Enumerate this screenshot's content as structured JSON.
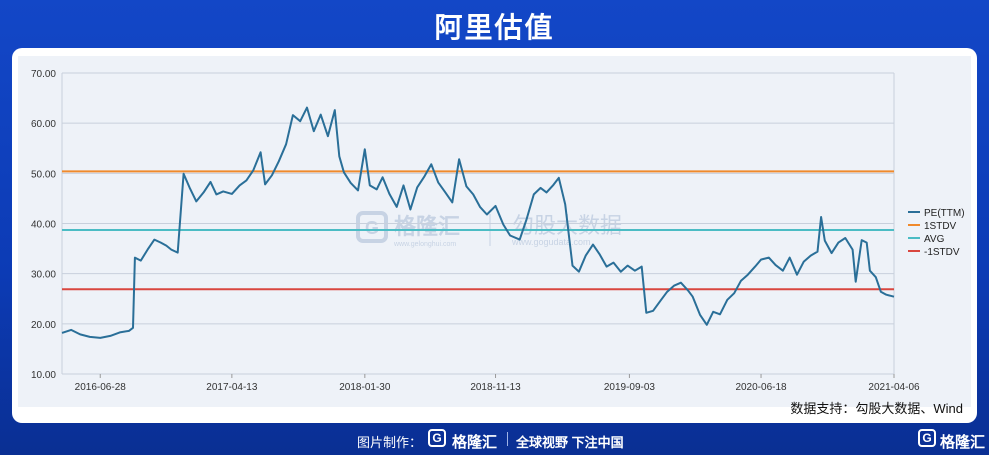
{
  "title": "阿里估值",
  "source": "数据支持：勾股大数据、Wind",
  "footer": {
    "made_by": "图片制作：",
    "brand": "格隆汇",
    "slogan": "全球视野 下注中国",
    "brand_right": "格隆汇",
    "logo_letter": "G"
  },
  "watermark": {
    "brand": "格隆汇",
    "brand_url": "www.gelonghui.com",
    "data": "勾股大数据",
    "data_url": "www.gogudata.com"
  },
  "colors": {
    "pe": "#2a6f98",
    "stdv_plus": "#f08a2c",
    "avg": "#4bbcc4",
    "stdv_minus": "#d9463f",
    "grid": "#c8d0dc"
  },
  "chart_data": {
    "type": "line",
    "ylim": [
      10,
      70
    ],
    "yticks": [
      "10.00",
      "20.00",
      "30.00",
      "40.00",
      "50.00",
      "60.00",
      "70.00"
    ],
    "xlim": [
      "2016-04-05",
      "2021-04-06"
    ],
    "xticks": [
      "2016-06-28",
      "2017-04-13",
      "2018-01-30",
      "2018-11-13",
      "2019-09-03",
      "2020-06-18",
      "2021-04-06"
    ],
    "hlines": [
      {
        "name": "1STDV",
        "value": 50.4
      },
      {
        "name": "AVG",
        "value": 38.7
      },
      {
        "name": "-1STDV",
        "value": 26.9
      }
    ],
    "legend": [
      "PE(TTM)",
      "1STDV",
      "AVG",
      "-1STDV"
    ],
    "legend_position": "right",
    "series": [
      {
        "name": "PE(TTM)",
        "points": [
          [
            "2016-04-05",
            18.2
          ],
          [
            "2016-04-25",
            18.8
          ],
          [
            "2016-05-15",
            17.9
          ],
          [
            "2016-06-05",
            17.4
          ],
          [
            "2016-06-28",
            17.2
          ],
          [
            "2016-07-20",
            17.6
          ],
          [
            "2016-08-10",
            18.3
          ],
          [
            "2016-08-30",
            18.6
          ],
          [
            "2016-09-08",
            19.2
          ],
          [
            "2016-09-12",
            33.2
          ],
          [
            "2016-09-25",
            32.6
          ],
          [
            "2016-10-10",
            34.8
          ],
          [
            "2016-10-25",
            36.8
          ],
          [
            "2016-11-08",
            36.2
          ],
          [
            "2016-11-20",
            35.6
          ],
          [
            "2016-12-01",
            34.8
          ],
          [
            "2016-12-15",
            34.2
          ],
          [
            "2016-12-28",
            49.9
          ],
          [
            "2017-01-10",
            47.2
          ],
          [
            "2017-01-25",
            44.4
          ],
          [
            "2017-02-10",
            46.2
          ],
          [
            "2017-02-25",
            48.3
          ],
          [
            "2017-03-10",
            45.8
          ],
          [
            "2017-03-25",
            46.4
          ],
          [
            "2017-04-13",
            45.9
          ],
          [
            "2017-04-30",
            47.6
          ],
          [
            "2017-05-15",
            48.6
          ],
          [
            "2017-05-30",
            50.6
          ],
          [
            "2017-06-15",
            54.2
          ],
          [
            "2017-06-25",
            47.8
          ],
          [
            "2017-07-10",
            49.6
          ],
          [
            "2017-07-25",
            52.4
          ],
          [
            "2017-08-10",
            55.8
          ],
          [
            "2017-08-25",
            61.6
          ],
          [
            "2017-09-10",
            60.4
          ],
          [
            "2017-09-25",
            63.1
          ],
          [
            "2017-10-10",
            58.4
          ],
          [
            "2017-10-25",
            61.7
          ],
          [
            "2017-11-10",
            57.4
          ],
          [
            "2017-11-25",
            62.6
          ],
          [
            "2017-12-05",
            53.4
          ],
          [
            "2017-12-15",
            50.2
          ],
          [
            "2017-12-30",
            48.1
          ],
          [
            "2018-01-15",
            46.6
          ],
          [
            "2018-01-30",
            54.8
          ],
          [
            "2018-02-10",
            47.6
          ],
          [
            "2018-02-25",
            46.8
          ],
          [
            "2018-03-10",
            49.2
          ],
          [
            "2018-03-25",
            45.9
          ],
          [
            "2018-04-10",
            43.3
          ],
          [
            "2018-04-25",
            47.6
          ],
          [
            "2018-05-10",
            42.8
          ],
          [
            "2018-05-25",
            47.2
          ],
          [
            "2018-06-10",
            49.4
          ],
          [
            "2018-06-25",
            51.8
          ],
          [
            "2018-07-10",
            48.2
          ],
          [
            "2018-07-25",
            46.3
          ],
          [
            "2018-08-10",
            44.2
          ],
          [
            "2018-08-25",
            52.8
          ],
          [
            "2018-09-10",
            47.4
          ],
          [
            "2018-09-25",
            45.8
          ],
          [
            "2018-10-10",
            43.3
          ],
          [
            "2018-10-25",
            41.8
          ],
          [
            "2018-11-13",
            43.5
          ],
          [
            "2018-11-30",
            39.8
          ],
          [
            "2018-12-15",
            37.6
          ],
          [
            "2019-01-05",
            36.8
          ],
          [
            "2019-01-20",
            40.8
          ],
          [
            "2019-02-05",
            45.8
          ],
          [
            "2019-02-20",
            47.1
          ],
          [
            "2019-03-05",
            46.2
          ],
          [
            "2019-03-20",
            47.7
          ],
          [
            "2019-04-01",
            49.1
          ],
          [
            "2019-04-15",
            43.8
          ],
          [
            "2019-05-01",
            31.6
          ],
          [
            "2019-05-15",
            30.4
          ],
          [
            "2019-05-30",
            33.6
          ],
          [
            "2019-06-15",
            35.8
          ],
          [
            "2019-06-30",
            33.8
          ],
          [
            "2019-07-15",
            31.4
          ],
          [
            "2019-07-30",
            32.2
          ],
          [
            "2019-08-15",
            30.4
          ],
          [
            "2019-08-30",
            31.6
          ],
          [
            "2019-09-15",
            30.6
          ],
          [
            "2019-09-30",
            31.4
          ],
          [
            "2019-10-10",
            22.2
          ],
          [
            "2019-10-25",
            22.6
          ],
          [
            "2019-11-10",
            24.6
          ],
          [
            "2019-11-25",
            26.4
          ],
          [
            "2019-12-10",
            27.6
          ],
          [
            "2019-12-25",
            28.2
          ],
          [
            "2020-01-10",
            26.6
          ],
          [
            "2020-01-20",
            25.4
          ],
          [
            "2020-02-05",
            21.8
          ],
          [
            "2020-02-20",
            19.8
          ],
          [
            "2020-03-05",
            22.4
          ],
          [
            "2020-03-20",
            21.9
          ],
          [
            "2020-04-05",
            24.8
          ],
          [
            "2020-04-20",
            26.1
          ],
          [
            "2020-05-05",
            28.6
          ],
          [
            "2020-05-20",
            29.8
          ],
          [
            "2020-06-05",
            31.4
          ],
          [
            "2020-06-18",
            32.8
          ],
          [
            "2020-07-05",
            33.2
          ],
          [
            "2020-07-20",
            31.7
          ],
          [
            "2020-08-05",
            30.6
          ],
          [
            "2020-08-20",
            33.2
          ],
          [
            "2020-09-05",
            29.8
          ],
          [
            "2020-09-20",
            32.4
          ],
          [
            "2020-10-05",
            33.6
          ],
          [
            "2020-10-20",
            34.4
          ],
          [
            "2020-10-28",
            41.3
          ],
          [
            "2020-11-05",
            36.6
          ],
          [
            "2020-11-20",
            34.1
          ],
          [
            "2020-12-05",
            36.2
          ],
          [
            "2020-12-20",
            37.1
          ],
          [
            "2021-01-05",
            34.8
          ],
          [
            "2021-01-12",
            28.4
          ],
          [
            "2021-01-25",
            36.7
          ],
          [
            "2021-02-05",
            36.2
          ],
          [
            "2021-02-12",
            30.6
          ],
          [
            "2021-02-25",
            29.3
          ],
          [
            "2021-03-08",
            26.4
          ],
          [
            "2021-03-20",
            25.8
          ],
          [
            "2021-04-06",
            25.4
          ]
        ]
      }
    ]
  }
}
